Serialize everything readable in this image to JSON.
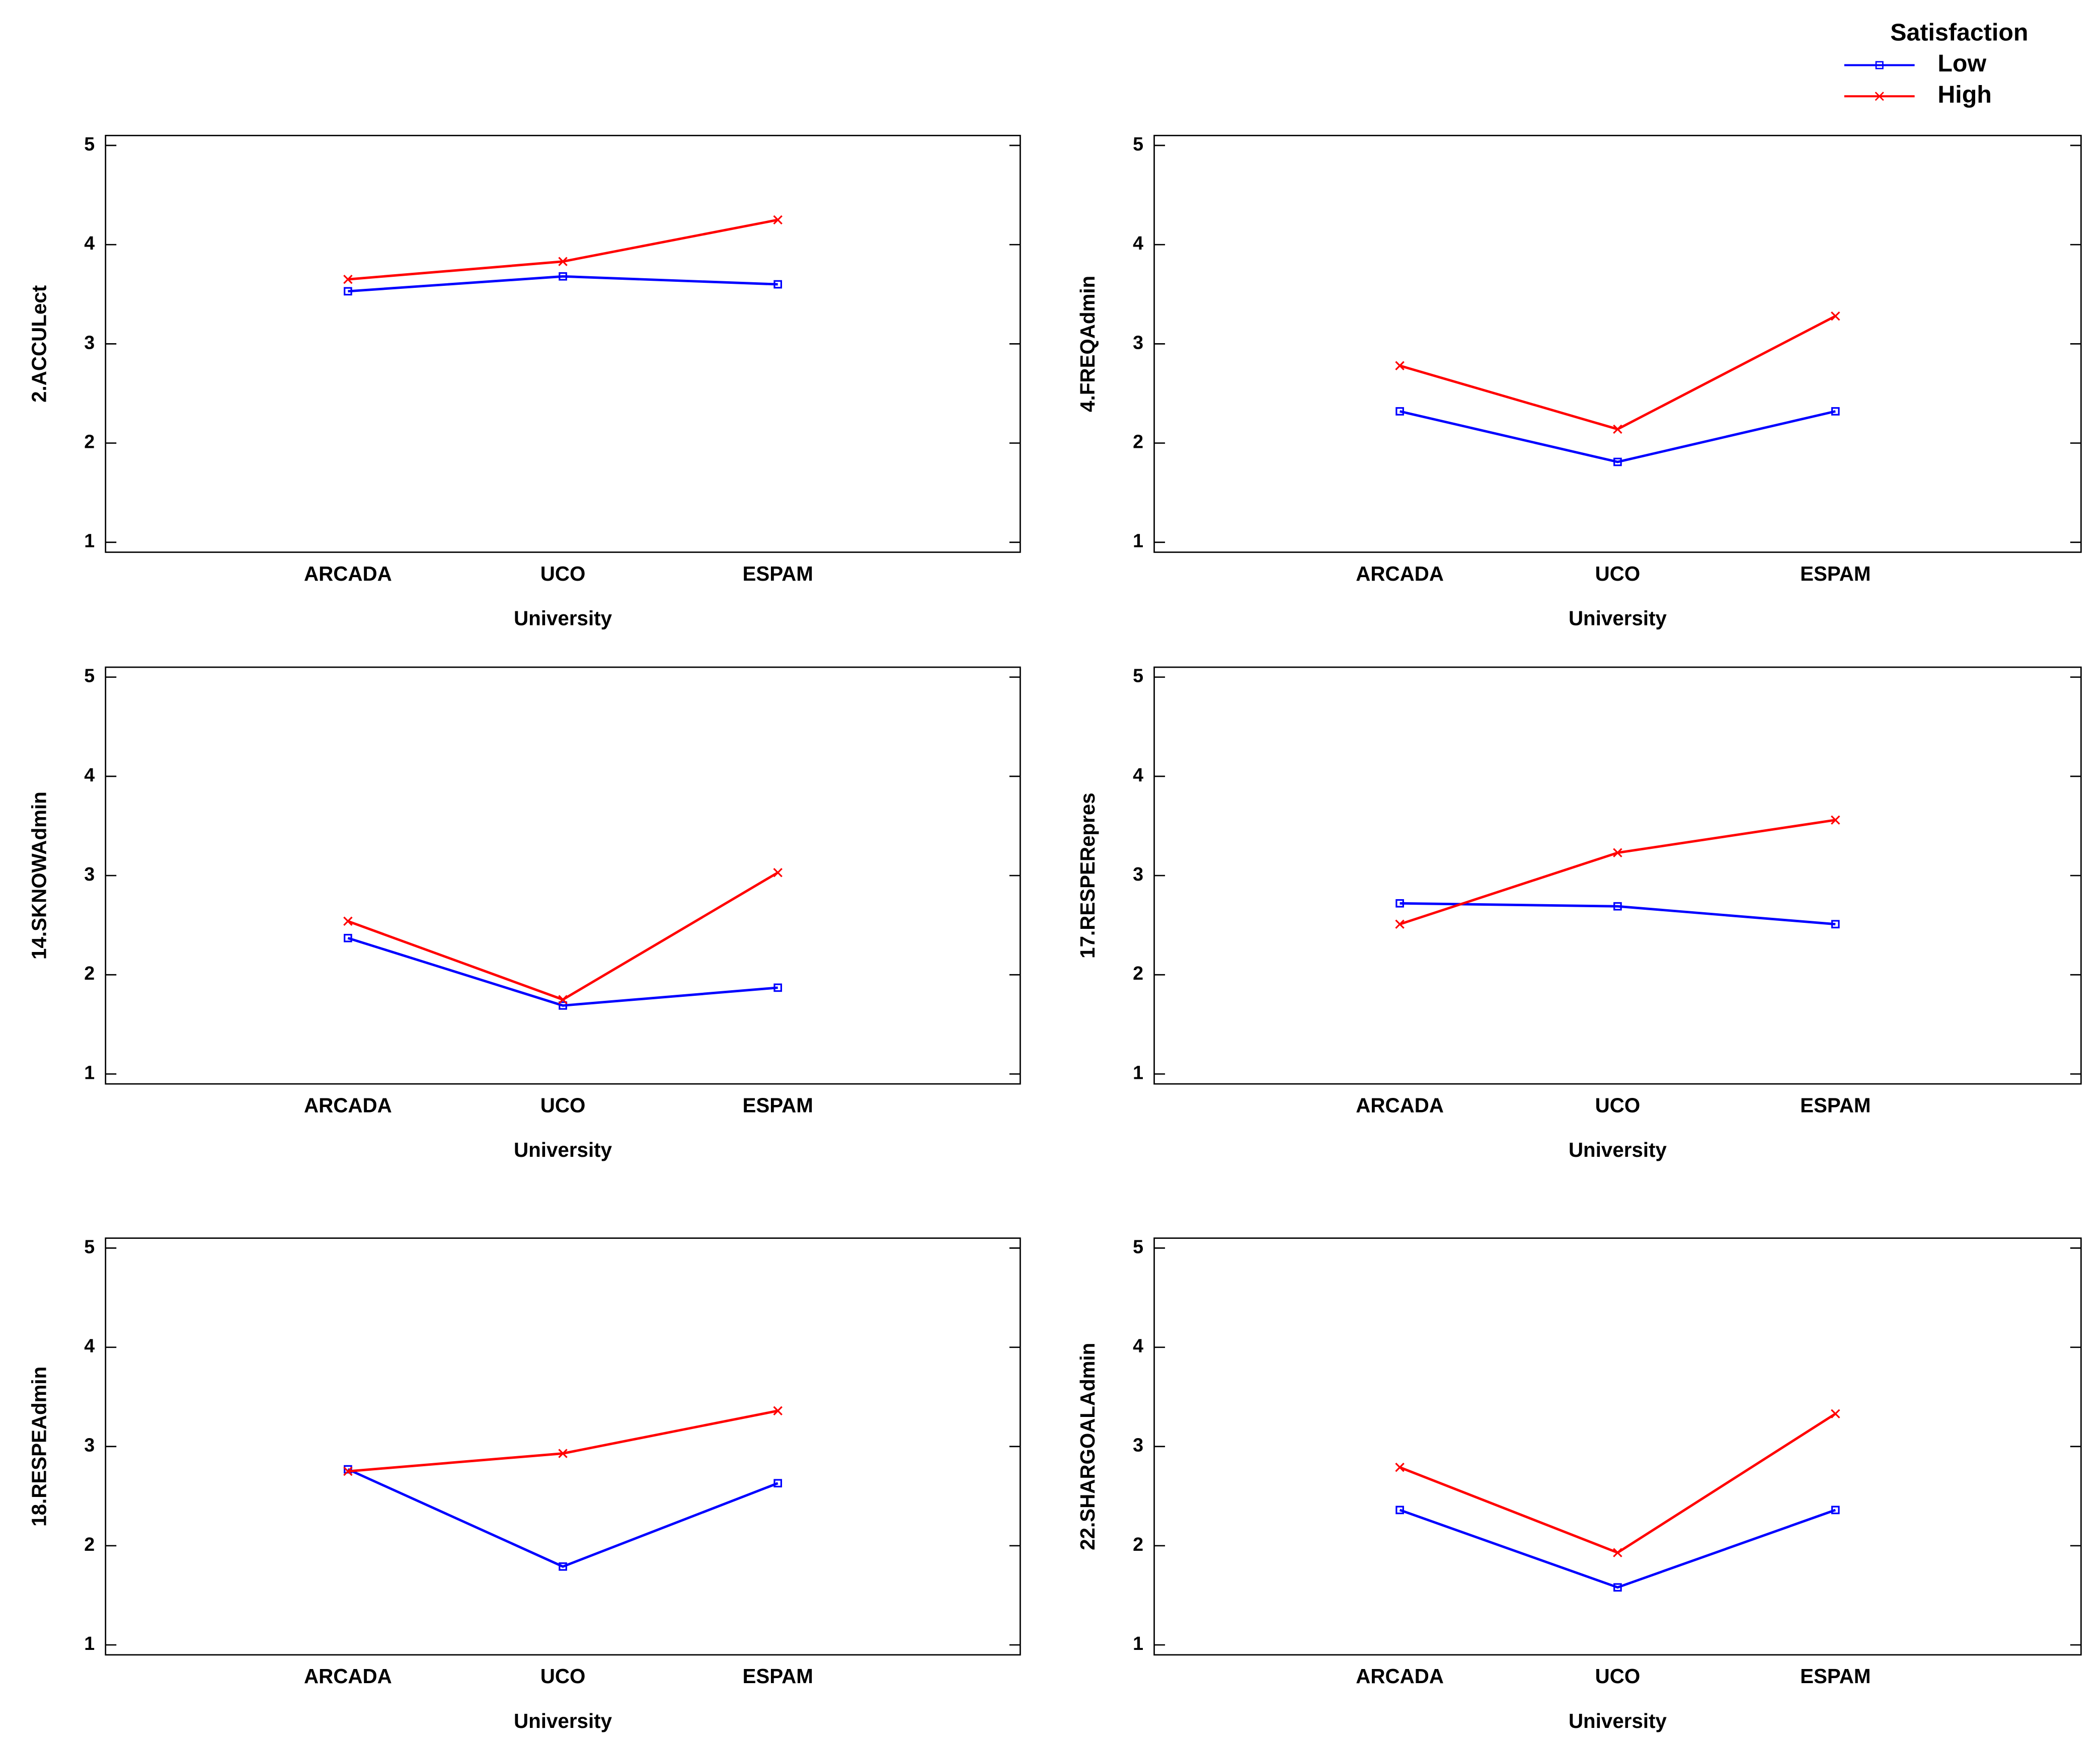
{
  "legend_title": "Satisfaction",
  "chart_data": [
    {
      "type": "line",
      "ylabel": "2.ACCULect",
      "xlabel": "University",
      "categories": [
        "ARCADA",
        "UCO",
        "ESPAM"
      ],
      "series": [
        {
          "name": "Low",
          "color": "#0000ff",
          "values": [
            3.53,
            3.68,
            3.6
          ]
        },
        {
          "name": "High",
          "color": "#ff0000",
          "values": [
            3.65,
            3.83,
            4.25
          ]
        }
      ],
      "ylim": [
        0.9,
        5.1
      ],
      "yticks": [
        1,
        2,
        3,
        4,
        5
      ]
    },
    {
      "type": "line",
      "ylabel": "4.FREQAdmin",
      "xlabel": "University",
      "categories": [
        "ARCADA",
        "UCO",
        "ESPAM"
      ],
      "series": [
        {
          "name": "Low",
          "color": "#0000ff",
          "values": [
            2.32,
            1.81,
            2.32
          ]
        },
        {
          "name": "High",
          "color": "#ff0000",
          "values": [
            2.78,
            2.14,
            3.28
          ]
        }
      ],
      "ylim": [
        0.9,
        5.1
      ],
      "yticks": [
        1,
        2,
        3,
        4,
        5
      ]
    },
    {
      "type": "line",
      "ylabel": "14.SKNOWAdmin",
      "xlabel": "University",
      "categories": [
        "ARCADA",
        "UCO",
        "ESPAM"
      ],
      "series": [
        {
          "name": "Low",
          "color": "#0000ff",
          "values": [
            2.37,
            1.69,
            1.87
          ]
        },
        {
          "name": "High",
          "color": "#ff0000",
          "values": [
            2.54,
            1.75,
            3.03
          ]
        }
      ],
      "ylim": [
        0.9,
        5.1
      ],
      "yticks": [
        1,
        2,
        3,
        4,
        5
      ]
    },
    {
      "type": "line",
      "ylabel": "17.RESPERepres",
      "xlabel": "University",
      "categories": [
        "ARCADA",
        "UCO",
        "ESPAM"
      ],
      "series": [
        {
          "name": "Low",
          "color": "#0000ff",
          "values": [
            2.72,
            2.69,
            2.51
          ]
        },
        {
          "name": "High",
          "color": "#ff0000",
          "values": [
            2.51,
            3.23,
            3.56
          ]
        }
      ],
      "ylim": [
        0.9,
        5.1
      ],
      "yticks": [
        1,
        2,
        3,
        4,
        5
      ]
    },
    {
      "type": "line",
      "ylabel": "18.RESPEAdmin",
      "xlabel": "University",
      "categories": [
        "ARCADA",
        "UCO",
        "ESPAM"
      ],
      "series": [
        {
          "name": "Low",
          "color": "#0000ff",
          "values": [
            2.77,
            1.79,
            2.63
          ]
        },
        {
          "name": "High",
          "color": "#ff0000",
          "values": [
            2.75,
            2.93,
            3.36
          ]
        }
      ],
      "ylim": [
        0.9,
        5.1
      ],
      "yticks": [
        1,
        2,
        3,
        4,
        5
      ]
    },
    {
      "type": "line",
      "ylabel": "22.SHARGOALAdmin",
      "xlabel": "University",
      "categories": [
        "ARCADA",
        "UCO",
        "ESPAM"
      ],
      "series": [
        {
          "name": "Low",
          "color": "#0000ff",
          "values": [
            2.36,
            1.58,
            2.36
          ]
        },
        {
          "name": "High",
          "color": "#ff0000",
          "values": [
            2.79,
            1.93,
            3.33
          ]
        }
      ],
      "ylim": [
        0.9,
        5.1
      ],
      "yticks": [
        1,
        2,
        3,
        4,
        5
      ]
    }
  ]
}
